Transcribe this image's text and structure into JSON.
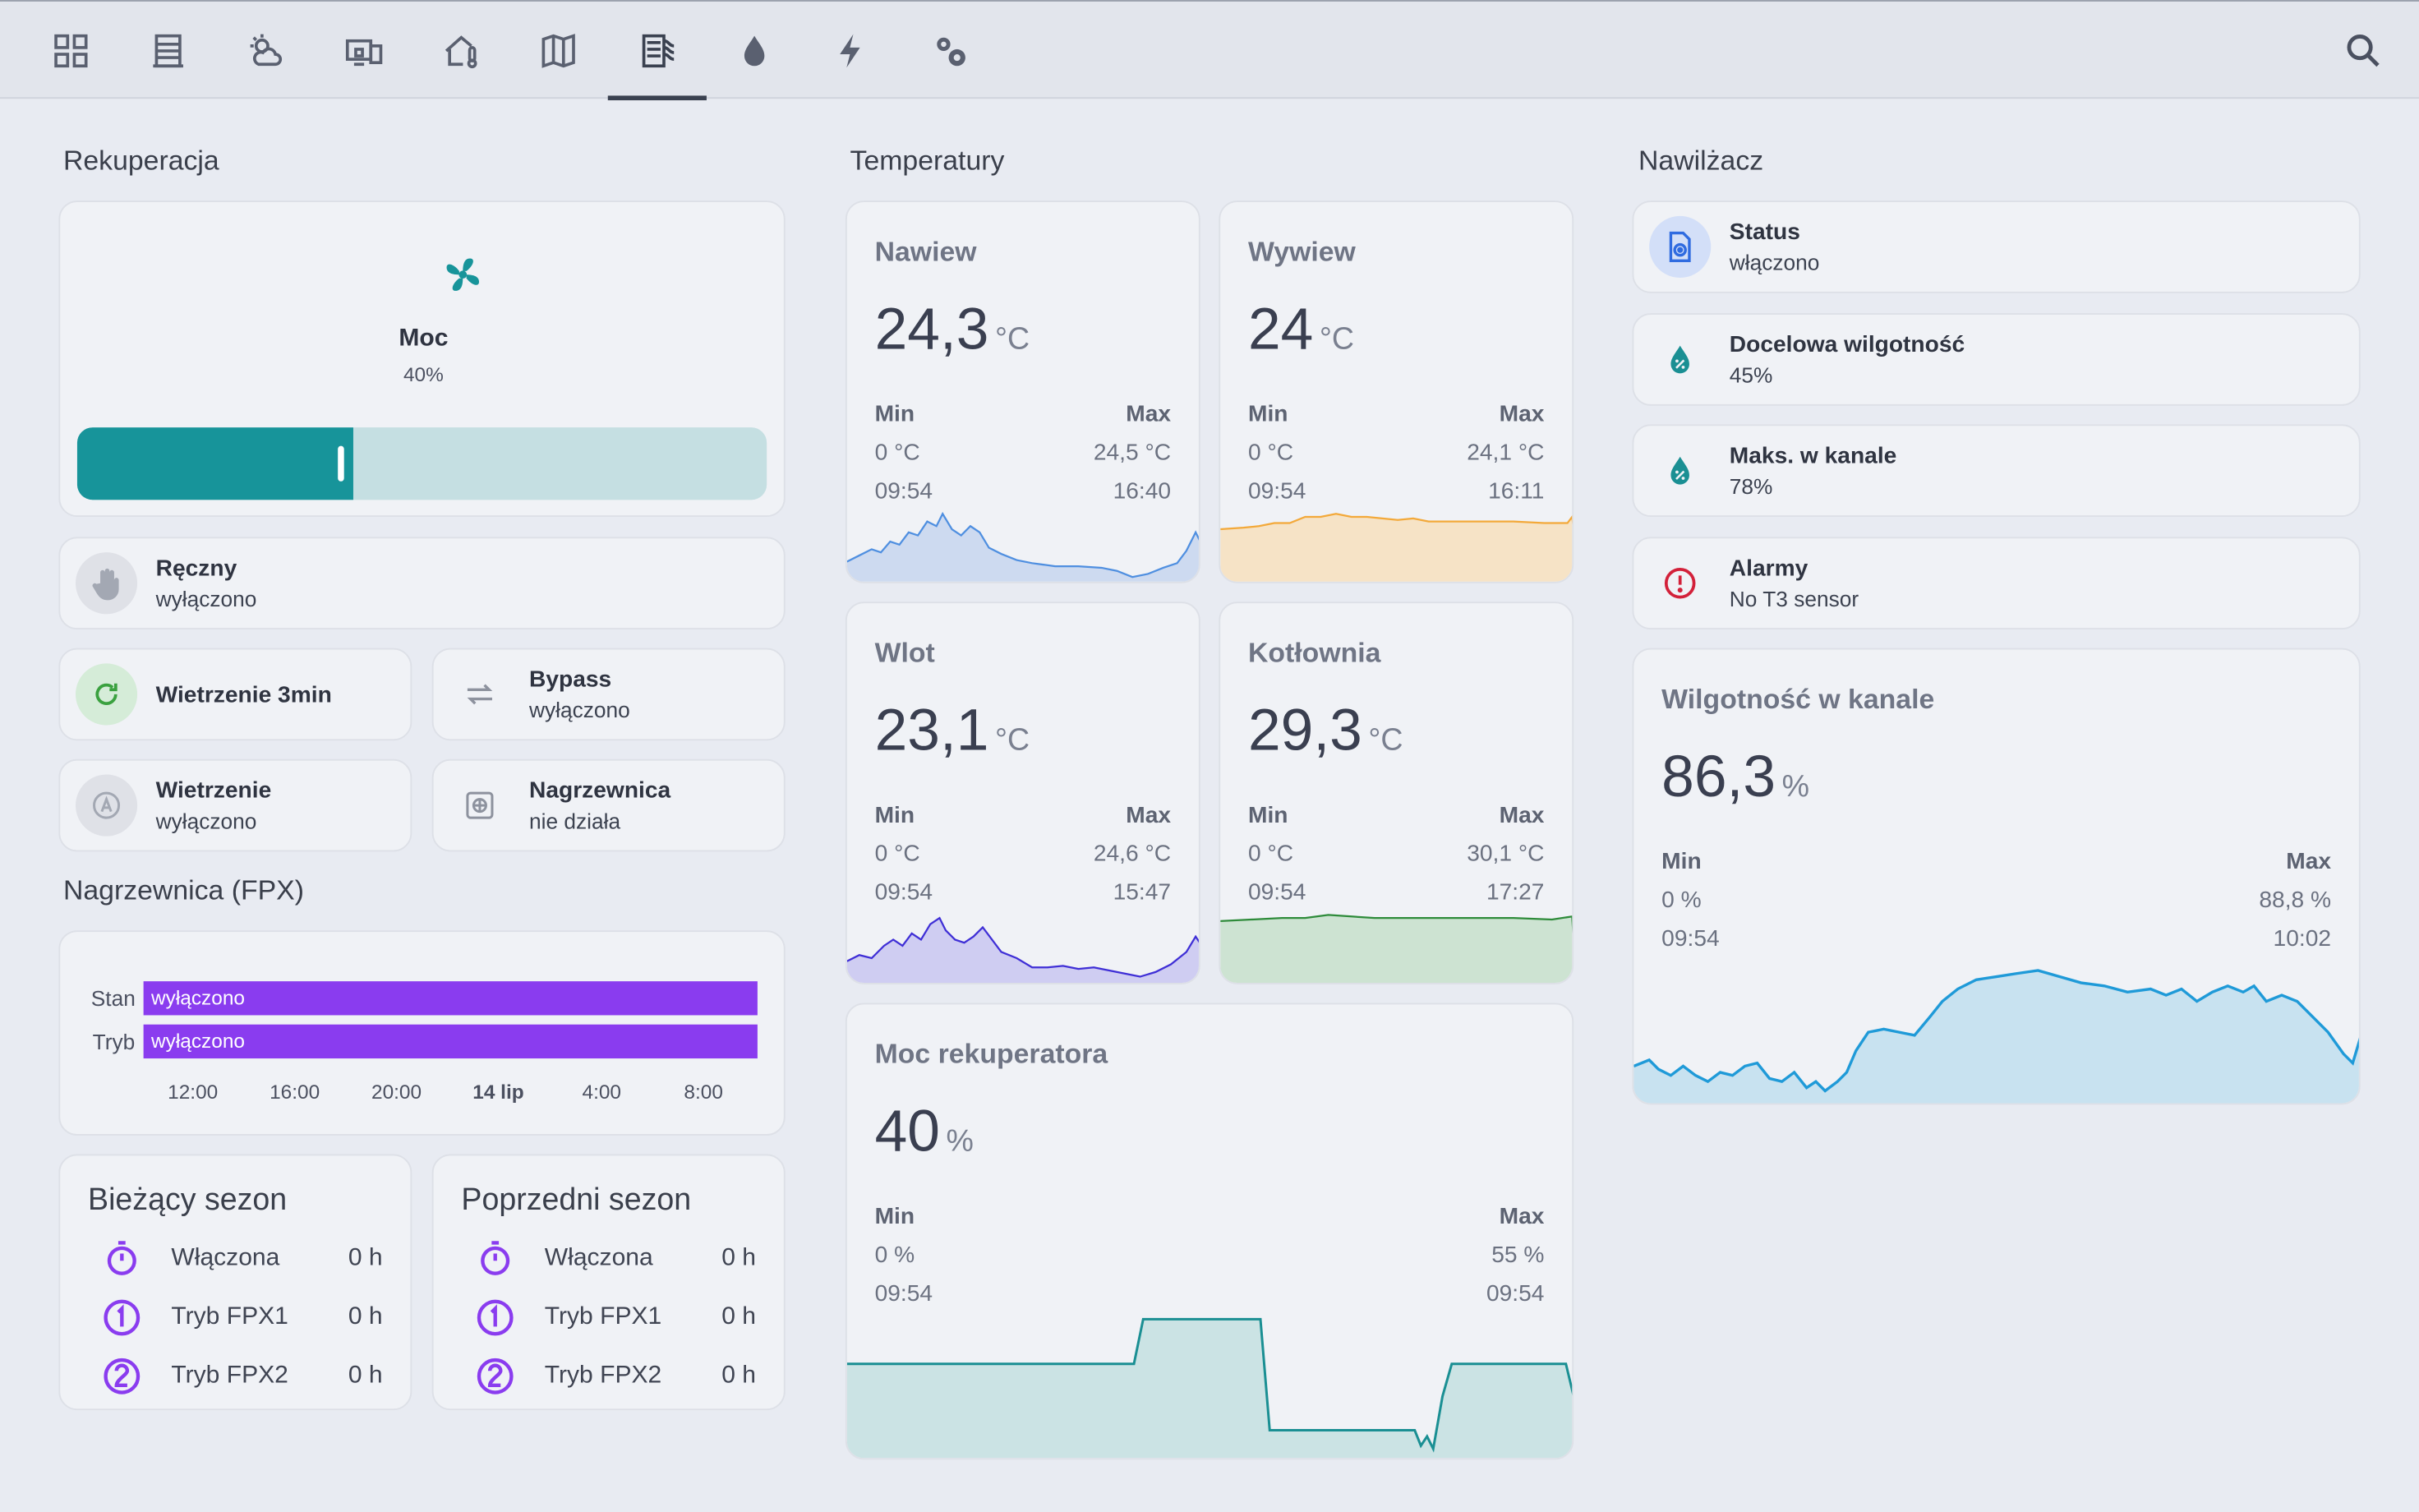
{
  "toolbar": {
    "tabs": [
      {
        "icon": "grid-icon"
      },
      {
        "icon": "building-icon"
      },
      {
        "icon": "weather-icon"
      },
      {
        "icon": "devices-icon"
      },
      {
        "icon": "home-thermometer-icon"
      },
      {
        "icon": "map-icon"
      },
      {
        "icon": "hvac-icon",
        "active": true
      },
      {
        "icon": "water-drop-icon"
      },
      {
        "icon": "lightning-icon"
      },
      {
        "icon": "settings-cogs-icon"
      }
    ],
    "search_icon": "search-icon"
  },
  "rekuperacja": {
    "title": "Rekuperacja",
    "fan": {
      "name": "Moc",
      "value": "40%",
      "level": 40,
      "icon": "fan-icon",
      "color": "#17949a"
    },
    "reczny": {
      "name": "Ręczny",
      "state": "wyłączono"
    },
    "wietrzenie3": {
      "name": "Wietrzenie 3min"
    },
    "bypass": {
      "name": "Bypass",
      "state": "wyłączono"
    },
    "wietrzenie": {
      "name": "Wietrzenie",
      "state": "wyłączono"
    },
    "nagrzewnica": {
      "name": "Nagrzewnica",
      "state": "nie działa"
    }
  },
  "fpx": {
    "title": "Nagrzewnica (FPX)",
    "rows": [
      {
        "label": "Stan",
        "value": "wyłączono"
      },
      {
        "label": "Tryb",
        "value": "wyłączono"
      }
    ],
    "ticks": [
      "12:00",
      "16:00",
      "20:00",
      "14 lip",
      "4:00",
      "8:00"
    ],
    "bar_color": "#8a3cef"
  },
  "seasons": [
    {
      "title": "Bieżący sezon",
      "rows": [
        {
          "label": "Włączona",
          "value": "0 h",
          "icon": "timer-icon"
        },
        {
          "label": "Tryb FPX1",
          "value": "0 h",
          "icon": "numeric-1-icon"
        },
        {
          "label": "Tryb FPX2",
          "value": "0 h",
          "icon": "numeric-2-icon"
        }
      ]
    },
    {
      "title": "Poprzedni sezon",
      "rows": [
        {
          "label": "Włączona",
          "value": "0 h",
          "icon": "timer-icon"
        },
        {
          "label": "Tryb FPX1",
          "value": "0 h",
          "icon": "numeric-1-icon"
        },
        {
          "label": "Tryb FPX2",
          "value": "0 h",
          "icon": "numeric-2-icon"
        }
      ]
    }
  ],
  "temperatury": {
    "title": "Temperatury",
    "sensors": [
      {
        "name": "Nawiew",
        "value": "24,3",
        "unit": "°C",
        "min_label": "Min",
        "max_label": "Max",
        "min": "0 °C",
        "max": "24,5 °C",
        "min_time": "09:54",
        "max_time": "16:40",
        "color": "#4f8fe0"
      },
      {
        "name": "Wywiew",
        "value": "24",
        "unit": "°C",
        "min_label": "Min",
        "max_label": "Max",
        "min": "0 °C",
        "max": "24,1 °C",
        "min_time": "09:54",
        "max_time": "16:11",
        "color": "#f3a93a"
      },
      {
        "name": "Wlot",
        "value": "23,1",
        "unit": "°C",
        "min_label": "Min",
        "max_label": "Max",
        "min": "0 °C",
        "max": "24,6 °C",
        "min_time": "09:54",
        "max_time": "15:47",
        "color": "#3f2fd6"
      },
      {
        "name": "Kotłownia",
        "value": "29,3",
        "unit": "°C",
        "min_label": "Min",
        "max_label": "Max",
        "min": "0 °C",
        "max": "30,1 °C",
        "min_time": "09:54",
        "max_time": "17:27",
        "color": "#2e8b3a"
      }
    ],
    "moc": {
      "name": "Moc rekuperatora",
      "value": "40",
      "unit": "%",
      "min_label": "Min",
      "max_label": "Max",
      "min": "0 %",
      "max": "55 %",
      "min_time": "09:54",
      "max_time": "09:54",
      "color": "#1a8f93"
    }
  },
  "nawilzacz": {
    "title": "Nawilżacz",
    "status": {
      "name": "Status",
      "state": "włączono"
    },
    "docelowa": {
      "name": "Docelowa wilgotność",
      "state": "45%"
    },
    "maks": {
      "name": "Maks. w kanale",
      "state": "78%"
    },
    "alarmy": {
      "name": "Alarmy",
      "state": "No T3 sensor"
    },
    "wilgotnosc": {
      "name": "Wilgotność w kanale",
      "value": "86,3",
      "unit": "%",
      "min_label": "Min",
      "max_label": "Max",
      "min": "0 %",
      "max": "88,8 %",
      "min_time": "09:54",
      "max_time": "10:02",
      "color": "#1f9ad8"
    }
  }
}
